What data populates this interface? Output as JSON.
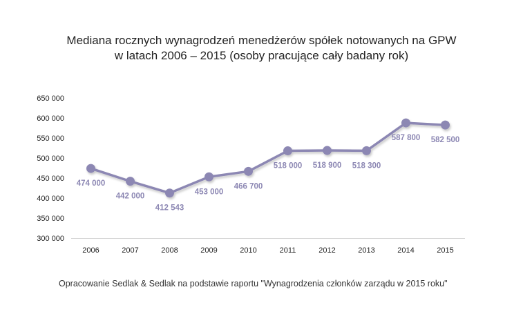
{
  "chart_data": {
    "type": "line",
    "title": [
      "Mediana rocznych wynagrodzeń menedżerów spółek notowanych na GPW",
      "w latach 2006 – 2015 (osoby pracujące cały badany rok)"
    ],
    "categories": [
      "2006",
      "2007",
      "2008",
      "2009",
      "2010",
      "2011",
      "2012",
      "2013",
      "2014",
      "2015"
    ],
    "series": [
      {
        "values": [
          474000,
          442000,
          412543,
          453000,
          466700,
          518000,
          518900,
          518300,
          587800,
          582500
        ],
        "labels": [
          "474 000",
          "442 000",
          "412 543",
          "453 000",
          "466 700",
          "518 000",
          "518 900",
          "518 300",
          "587 800",
          "582 500"
        ],
        "color": "#8c87b3"
      }
    ],
    "ylim": [
      300000,
      650000
    ],
    "yticks": [
      300000,
      350000,
      400000,
      450000,
      500000,
      550000,
      600000,
      650000
    ],
    "ytick_labels": [
      "300 000",
      "350 000",
      "400 000",
      "450 000",
      "500 000",
      "550 000",
      "600 000",
      "650 000"
    ],
    "grid": false,
    "legend": "none"
  },
  "source": "Opracowanie Sedlak & Sedlak na podstawie raportu \"Wynagrodzenia członków zarządu w 2015 roku\""
}
